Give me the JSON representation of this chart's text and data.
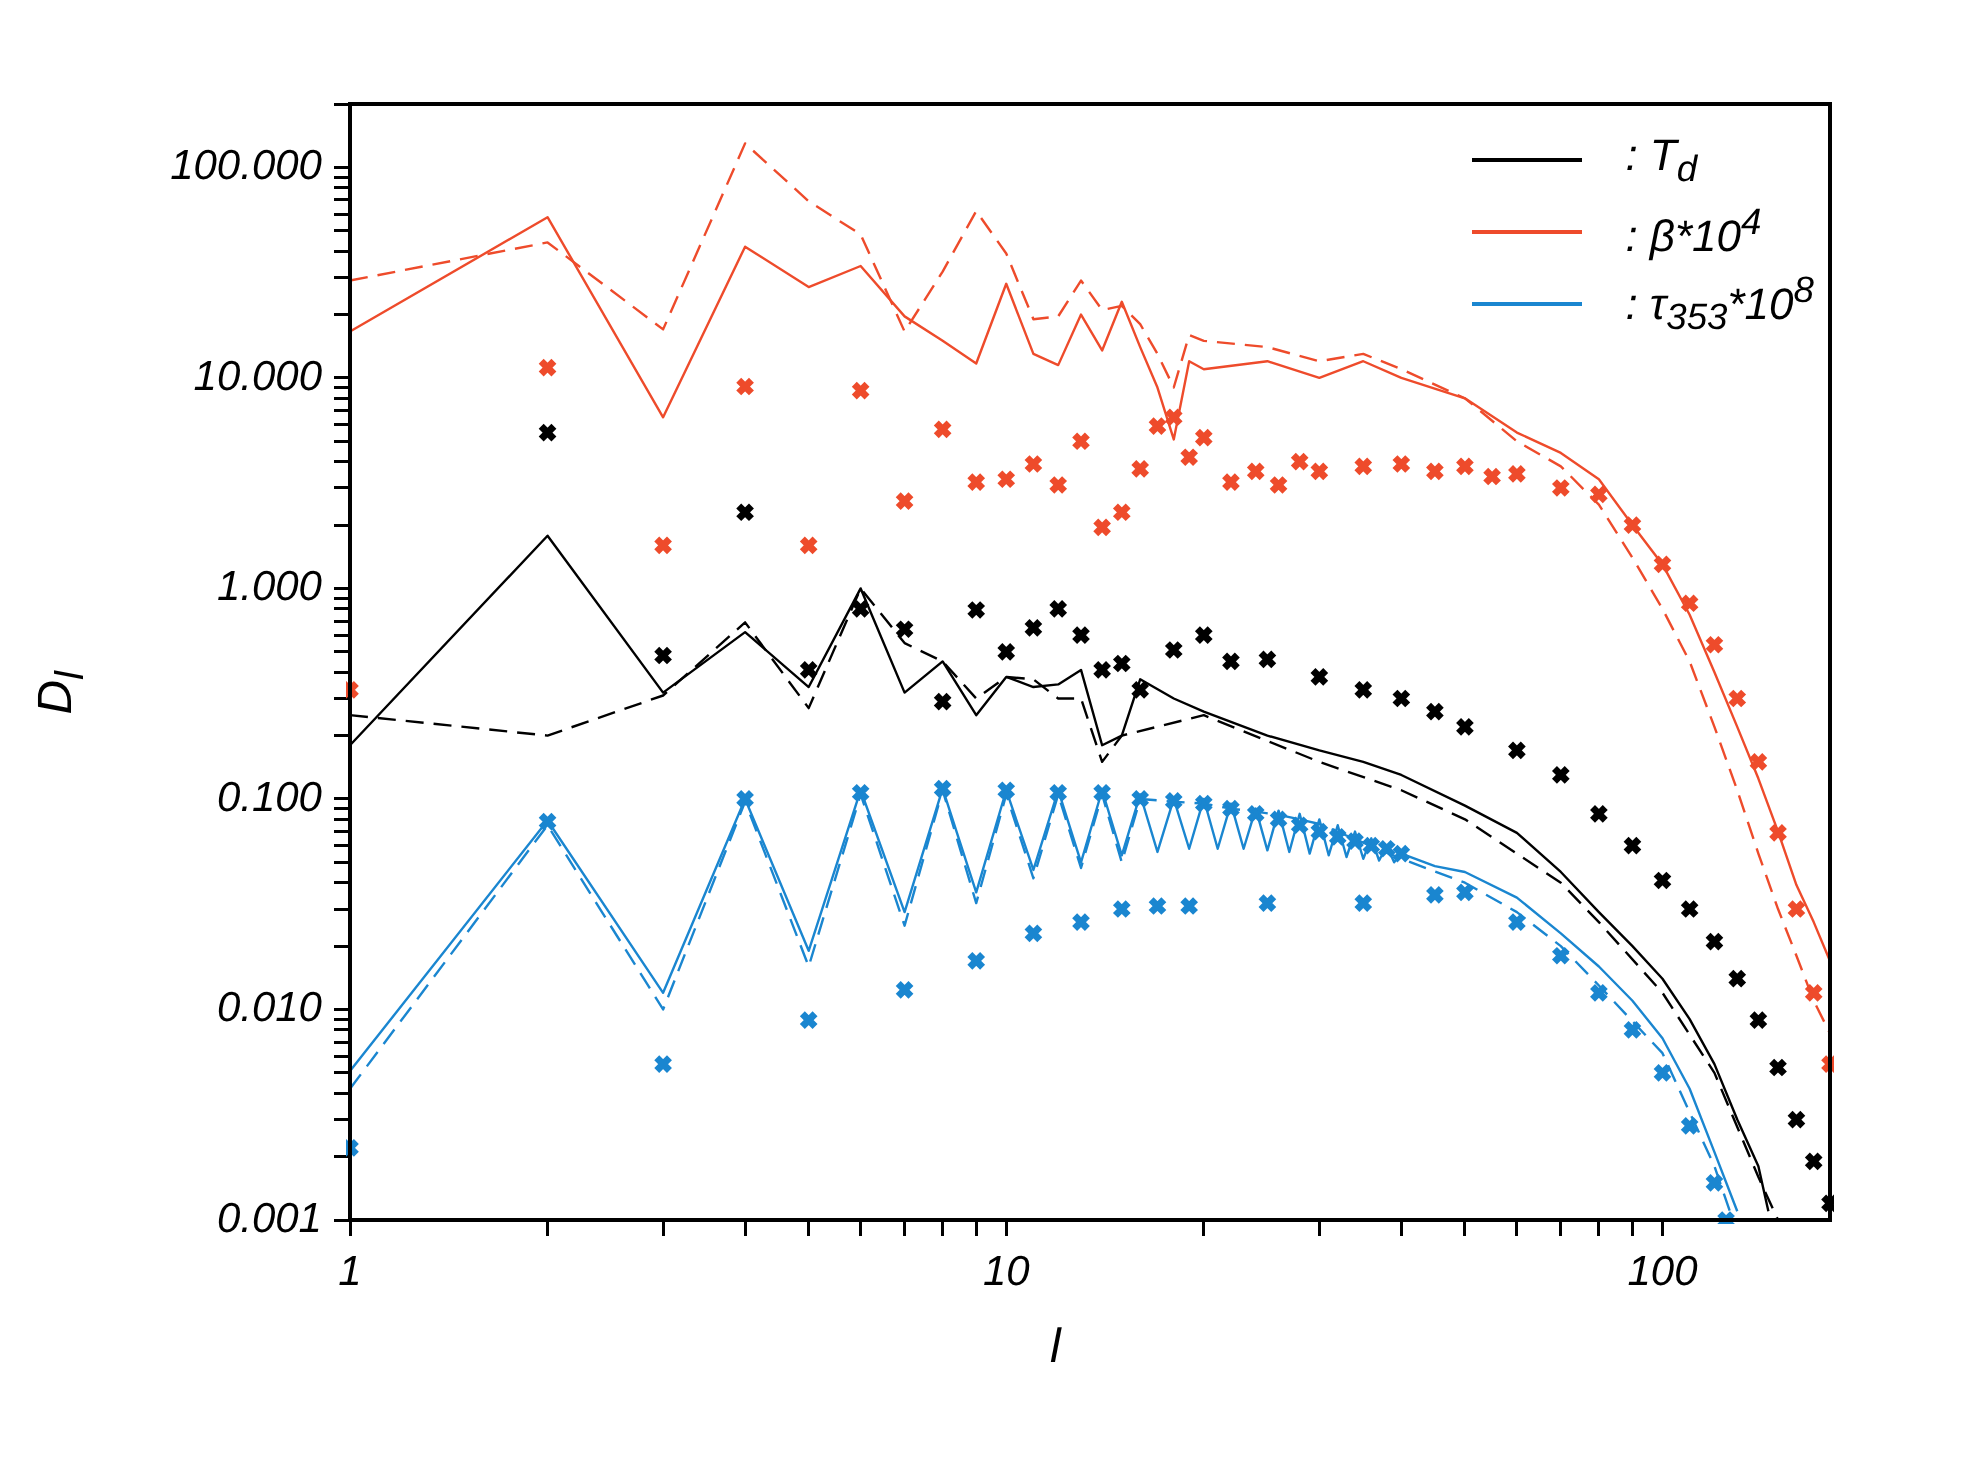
{
  "chart_data": {
    "type": "line",
    "xlabel": "l",
    "ylabel": "D$_{l}$",
    "log": "xy",
    "grid": false,
    "legend": "top right",
    "xlim": [
      1,
      180
    ],
    "xticks": [
      1,
      {
        "value": 2,
        "label": null
      },
      {
        "value": 3,
        "label": null
      },
      {
        "value": 4,
        "label": null
      },
      {
        "value": 5,
        "label": null
      },
      {
        "value": 6,
        "label": null
      },
      {
        "value": 7,
        "label": null
      },
      {
        "value": 8,
        "label": null
      },
      {
        "value": 9,
        "label": null
      },
      10,
      {
        "value": 20,
        "label": null
      },
      {
        "value": 30,
        "label": null
      },
      {
        "value": 40,
        "label": null
      },
      {
        "value": 50,
        "label": null
      },
      {
        "value": 60,
        "label": null
      },
      {
        "value": 70,
        "label": null
      },
      {
        "value": 80,
        "label": null
      },
      {
        "value": 90,
        "label": null
      },
      100
    ],
    "ylim": [
      0.001,
      200
    ],
    "yticks": [
      {
        "value": 0.001,
        "label": "0.001"
      },
      {
        "value": 0.002,
        "label": null
      },
      {
        "value": 0.003,
        "label": null
      },
      {
        "value": 0.004,
        "label": null
      },
      {
        "value": 0.005,
        "label": null
      },
      {
        "value": 0.006,
        "label": null
      },
      {
        "value": 0.007,
        "label": null
      },
      {
        "value": 0.008,
        "label": null
      },
      {
        "value": 0.009,
        "label": null
      },
      {
        "value": 0.01,
        "label": "0.010"
      },
      {
        "value": 0.02,
        "label": null
      },
      {
        "value": 0.03,
        "label": null
      },
      {
        "value": 0.04,
        "label": null
      },
      {
        "value": 0.05,
        "label": null
      },
      {
        "value": 0.06,
        "label": null
      },
      {
        "value": 0.07,
        "label": null
      },
      {
        "value": 0.08,
        "label": null
      },
      {
        "value": 0.09,
        "label": null
      },
      {
        "value": 0.1,
        "label": "0.100"
      },
      {
        "value": 0.2,
        "label": null
      },
      {
        "value": 0.3,
        "label": null
      },
      {
        "value": 0.4,
        "label": null
      },
      {
        "value": 0.5,
        "label": null
      },
      {
        "value": 0.6,
        "label": null
      },
      {
        "value": 0.7,
        "label": null
      },
      {
        "value": 0.8,
        "label": null
      },
      {
        "value": 0.9,
        "label": null
      },
      {
        "value": 1,
        "label": "1.000"
      },
      {
        "value": 2,
        "label": null
      },
      {
        "value": 3,
        "label": null
      },
      {
        "value": 4,
        "label": null
      },
      {
        "value": 5,
        "label": null
      },
      {
        "value": 6,
        "label": null
      },
      {
        "value": 7,
        "label": null
      },
      {
        "value": 8,
        "label": null
      },
      {
        "value": 9,
        "label": null
      },
      {
        "value": 10,
        "label": "10.000"
      },
      {
        "value": 20,
        "label": null
      },
      {
        "value": 30,
        "label": null
      },
      {
        "value": 40,
        "label": null
      },
      {
        "value": 50,
        "label": null
      },
      {
        "value": 60,
        "label": null
      },
      {
        "value": 70,
        "label": null
      },
      {
        "value": 80,
        "label": null
      },
      {
        "value": 90,
        "label": null
      },
      {
        "value": 100,
        "label": "100.000"
      },
      {
        "value": 200,
        "label": null
      }
    ],
    "series": [
      {
        "name": ": T$_{d}$",
        "color": "#000000",
        "marker": "none",
        "line_style": "solid",
        "x": [
          1,
          2,
          3,
          4,
          5,
          6,
          7,
          8,
          9,
          10,
          11,
          12,
          13,
          14,
          15,
          16,
          18,
          20,
          25,
          30,
          35,
          40,
          50,
          60,
          70,
          80,
          90,
          100,
          110,
          120,
          130,
          140,
          145
        ],
        "values": [
          0.18,
          1.78,
          0.32,
          0.62,
          0.34,
          1.0,
          0.32,
          0.45,
          0.25,
          0.38,
          0.34,
          0.35,
          0.41,
          0.18,
          0.2,
          0.37,
          0.3,
          0.26,
          0.2,
          0.17,
          0.15,
          0.13,
          0.093,
          0.069,
          0.045,
          0.029,
          0.02,
          0.014,
          0.009,
          0.0055,
          0.003,
          0.0018,
          0.0011
        ]
      },
      {
        "name": ": β*10$^{4}$",
        "color": "#ee4b2b",
        "marker": "none",
        "line_style": "solid",
        "x": [
          1,
          2,
          3,
          4,
          5,
          6,
          7,
          8,
          9,
          10,
          11,
          12,
          13,
          14,
          15,
          16,
          17,
          18,
          19,
          20,
          25,
          30,
          35,
          40,
          50,
          60,
          70,
          80,
          90,
          100,
          110,
          120,
          130,
          140,
          150,
          160,
          170,
          180
        ],
        "values": [
          16.6,
          58,
          6.5,
          42,
          27,
          34,
          19.6,
          15,
          11.7,
          28,
          13,
          11.5,
          20,
          13.5,
          23,
          14,
          9,
          5.1,
          12,
          11,
          12,
          10,
          12,
          10,
          8,
          5.5,
          4.4,
          3.3,
          2.0,
          1.3,
          0.75,
          0.4,
          0.22,
          0.125,
          0.07,
          0.039,
          0.026,
          0.017
        ]
      },
      {
        "name": ": τ$_{353}$*10$^{8}$",
        "color": "#1a86d0",
        "marker": "none",
        "line_style": "solid",
        "x": [
          1,
          2,
          3,
          4,
          5,
          6,
          7,
          8,
          9,
          10,
          11,
          12,
          13,
          14,
          15,
          16,
          17,
          18,
          19,
          20,
          21,
          22,
          23,
          24,
          25,
          26,
          27,
          28,
          29,
          30,
          31,
          32,
          33,
          34,
          35,
          36,
          37,
          38,
          39,
          40,
          45,
          50,
          60,
          70,
          80,
          90,
          100,
          110,
          120,
          130
        ],
        "values": [
          0.0051,
          0.079,
          0.012,
          0.1,
          0.019,
          0.11,
          0.029,
          0.112,
          0.036,
          0.11,
          0.046,
          0.11,
          0.05,
          0.11,
          0.054,
          0.105,
          0.056,
          0.1,
          0.058,
          0.1,
          0.058,
          0.095,
          0.058,
          0.09,
          0.057,
          0.088,
          0.056,
          0.085,
          0.055,
          0.08,
          0.054,
          0.075,
          0.053,
          0.07,
          0.052,
          0.065,
          0.051,
          0.06,
          0.05,
          0.055,
          0.048,
          0.045,
          0.034,
          0.023,
          0.016,
          0.011,
          0.0073,
          0.0042,
          0.0021,
          0.0011
        ]
      },
      {
        "color": "#000000",
        "marker": "none",
        "line_style": "dashed",
        "x": [
          1,
          2,
          3,
          4,
          5,
          6,
          7,
          8,
          9,
          10,
          11,
          12,
          13,
          14,
          15,
          20,
          30,
          40,
          50,
          60,
          70,
          80,
          100,
          120,
          140,
          150
        ],
        "values": [
          0.25,
          0.2,
          0.31,
          0.69,
          0.27,
          1.0,
          0.55,
          0.45,
          0.3,
          0.38,
          0.37,
          0.3,
          0.3,
          0.15,
          0.2,
          0.25,
          0.15,
          0.11,
          0.08,
          0.055,
          0.04,
          0.026,
          0.012,
          0.005,
          0.0016,
          0.001
        ]
      },
      {
        "color": "#ee4b2b",
        "marker": "none",
        "line_style": "dashed",
        "x": [
          1,
          2,
          3,
          4,
          5,
          6,
          7,
          8,
          9,
          10,
          11,
          12,
          13,
          14,
          15,
          16,
          17,
          18,
          19,
          20,
          25,
          30,
          35,
          40,
          50,
          60,
          70,
          80,
          90,
          100,
          110,
          120,
          130,
          140,
          150,
          160,
          170,
          180
        ],
        "values": [
          29,
          44,
          17,
          130,
          69,
          48,
          16.6,
          32,
          62,
          39,
          19,
          19.6,
          29,
          21,
          22,
          18,
          13,
          9,
          16,
          15,
          14,
          12,
          13,
          11,
          8,
          5,
          3.8,
          2.5,
          1.4,
          0.8,
          0.45,
          0.22,
          0.11,
          0.055,
          0.03,
          0.018,
          0.011,
          0.0077
        ]
      },
      {
        "color": "#1a86d0",
        "marker": "none",
        "line_style": "dashed",
        "x": [
          1,
          2,
          3,
          4,
          5,
          6,
          7,
          8,
          9,
          10,
          11,
          12,
          13,
          14,
          15,
          16,
          18,
          20,
          22,
          24,
          26,
          28,
          30,
          35,
          40,
          50,
          60,
          70,
          80,
          100,
          120,
          128
        ],
        "values": [
          0.0042,
          0.075,
          0.01,
          0.097,
          0.016,
          0.105,
          0.025,
          0.11,
          0.032,
          0.105,
          0.042,
          0.105,
          0.047,
          0.105,
          0.05,
          0.1,
          0.097,
          0.095,
          0.09,
          0.087,
          0.084,
          0.08,
          0.076,
          0.062,
          0.052,
          0.04,
          0.029,
          0.02,
          0.013,
          0.0062,
          0.0018,
          0.001
        ]
      },
      {
        "type": "scatter",
        "color": "#000000",
        "marker": "cross",
        "x": [
          2,
          3,
          4,
          5,
          6,
          7,
          8,
          9,
          10,
          11,
          12,
          13,
          14,
          15,
          16,
          18,
          20,
          22,
          25,
          30,
          35,
          40,
          45,
          50,
          60,
          70,
          80,
          90,
          100,
          110,
          120,
          130,
          140,
          150,
          160,
          170,
          180
        ],
        "values": [
          5.5,
          0.48,
          2.3,
          0.41,
          0.8,
          0.64,
          0.29,
          0.79,
          0.5,
          0.65,
          0.8,
          0.6,
          0.41,
          0.44,
          0.33,
          0.51,
          0.6,
          0.45,
          0.46,
          0.38,
          0.33,
          0.3,
          0.26,
          0.22,
          0.17,
          0.13,
          0.085,
          0.06,
          0.041,
          0.03,
          0.021,
          0.014,
          0.0089,
          0.0053,
          0.003,
          0.0019,
          0.0012
        ]
      },
      {
        "type": "scatter",
        "color": "#ee4b2b",
        "marker": "cross",
        "x": [
          1,
          2,
          3,
          4,
          5,
          6,
          7,
          8,
          9,
          10,
          11,
          12,
          13,
          14,
          15,
          16,
          17,
          18,
          19,
          20,
          22,
          24,
          26,
          28,
          30,
          35,
          40,
          45,
          50,
          55,
          60,
          70,
          80,
          90,
          100,
          110,
          120,
          130,
          140,
          150,
          160,
          170,
          180
        ],
        "values": [
          0.33,
          11.2,
          1.6,
          9.1,
          1.6,
          8.7,
          2.6,
          5.7,
          3.2,
          3.3,
          3.9,
          3.1,
          5.0,
          1.95,
          2.3,
          3.7,
          5.9,
          6.5,
          4.2,
          5.2,
          3.2,
          3.6,
          3.1,
          4.0,
          3.6,
          3.8,
          3.9,
          3.6,
          3.8,
          3.4,
          3.5,
          3.0,
          2.8,
          2.0,
          1.3,
          0.85,
          0.54,
          0.3,
          0.15,
          0.069,
          0.03,
          0.012,
          0.0055
        ]
      },
      {
        "type": "scatter",
        "color": "#1a86d0",
        "marker": "cross",
        "x": [
          1,
          2,
          3,
          4,
          5,
          6,
          7,
          8,
          9,
          10,
          11,
          12,
          13,
          14,
          15,
          16,
          17,
          18,
          19,
          20,
          22,
          24,
          26,
          28,
          30,
          32,
          34,
          36,
          38,
          40,
          25,
          35,
          45,
          50,
          60,
          70,
          80,
          90,
          100,
          110,
          120,
          125
        ],
        "values": [
          0.0022,
          0.078,
          0.0055,
          0.1,
          0.0089,
          0.107,
          0.0124,
          0.112,
          0.017,
          0.11,
          0.023,
          0.107,
          0.026,
          0.107,
          0.03,
          0.1,
          0.031,
          0.098,
          0.031,
          0.095,
          0.09,
          0.085,
          0.08,
          0.075,
          0.07,
          0.066,
          0.063,
          0.06,
          0.058,
          0.055,
          0.032,
          0.032,
          0.035,
          0.036,
          0.026,
          0.018,
          0.012,
          0.008,
          0.005,
          0.0028,
          0.0015,
          0.001
        ]
      }
    ]
  }
}
